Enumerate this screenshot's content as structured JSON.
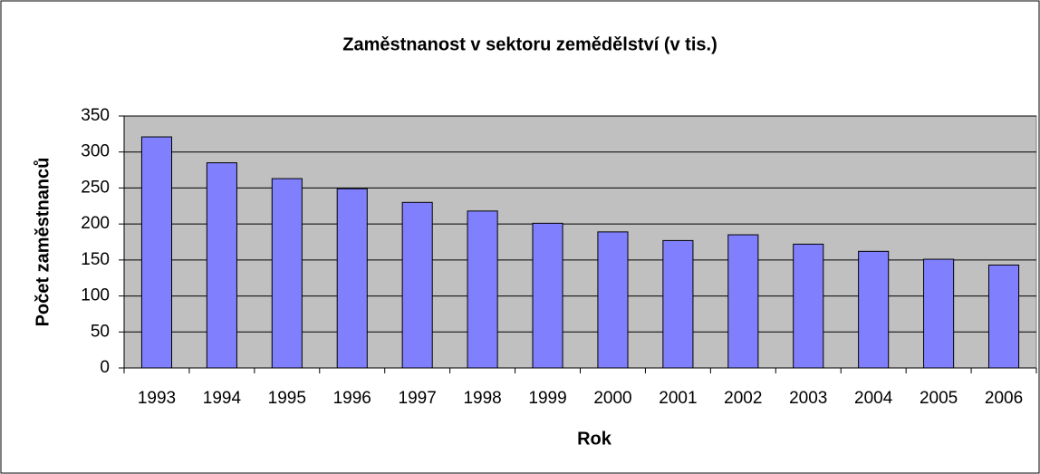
{
  "chart_data": {
    "type": "bar",
    "title": "Zaměstnanost v sektoru zemědělství (v tis.)",
    "x_label": "Rok",
    "y_label": "Počet zaměstnanců",
    "categories": [
      "1993",
      "1994",
      "1995",
      "1996",
      "1997",
      "1998",
      "1999",
      "2000",
      "2001",
      "2002",
      "2003",
      "2004",
      "2005",
      "2006"
    ],
    "values": [
      321,
      285,
      263,
      249,
      230,
      218,
      201,
      189,
      177,
      185,
      172,
      162,
      151,
      143
    ],
    "color": "#8080ff",
    "ylim": [
      0,
      350
    ],
    "yticks": [
      0,
      50,
      100,
      150,
      200,
      250,
      300,
      350
    ],
    "grid": true
  }
}
